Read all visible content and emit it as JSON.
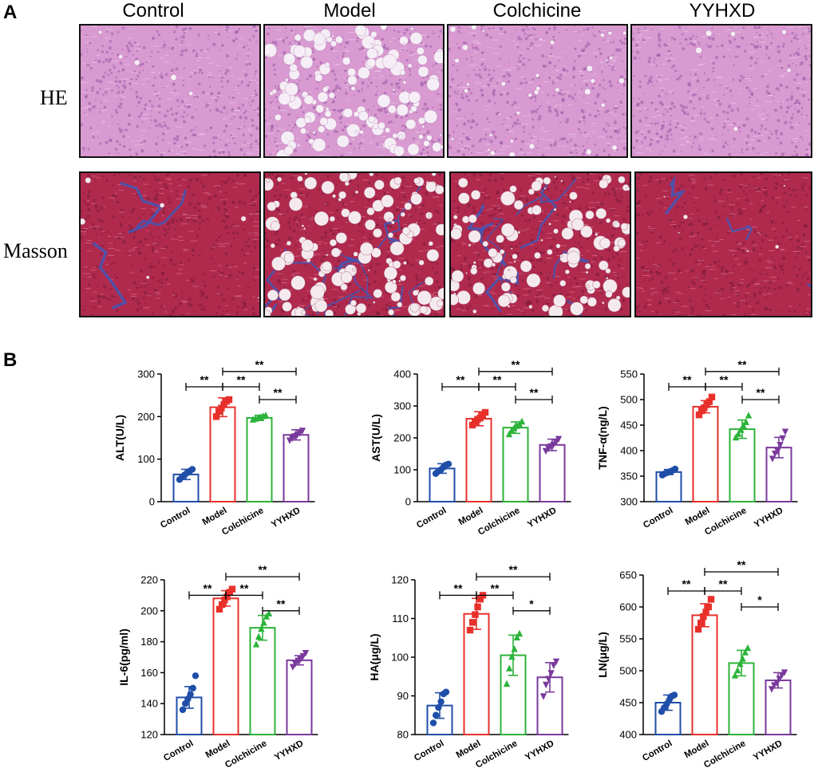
{
  "panel_a": {
    "letter": "A",
    "columns": [
      "Control",
      "Model",
      "Colchicine",
      "YYHXD"
    ],
    "rows": [
      "HE",
      "Masson"
    ]
  },
  "panel_b": {
    "letter": "B"
  },
  "colors": {
    "Control": "#1f4ea8",
    "Model": "#e8302b",
    "Colchicine": "#2cb33a",
    "YYHXD": "#7a3a9c",
    "he_bg": "#d89ad0",
    "he_vacuole": "#f6eef6",
    "masson_bg": "#b02a4e",
    "masson_vacuole": "#f4eaee",
    "collagen": "#3f58b8"
  },
  "chart_data": [
    {
      "type": "bar",
      "ylabel": "ALT(U/L)",
      "categories": [
        "Control",
        "Model",
        "Colchicine",
        "YYHXD"
      ],
      "ylim": [
        0,
        300
      ],
      "yticks": [
        0,
        100,
        200,
        300
      ],
      "means": [
        64,
        222,
        197,
        157
      ],
      "sd": [
        12,
        22,
        6,
        12
      ],
      "points": [
        [
          52,
          58,
          63,
          68,
          72,
          76
        ],
        [
          200,
          212,
          220,
          228,
          236,
          240
        ],
        [
          192,
          194,
          196,
          198,
          200,
          202
        ],
        [
          145,
          150,
          155,
          158,
          163,
          168
        ]
      ],
      "markers": [
        "circle",
        "square",
        "triangle",
        "triangle-down"
      ],
      "significance": [
        {
          "from": "Control",
          "to": "Model",
          "label": "**"
        },
        {
          "from": "Model",
          "to": "Colchicine",
          "label": "**"
        },
        {
          "from": "Model",
          "to": "YYHXD",
          "label": "**"
        },
        {
          "from": "Colchicine",
          "to": "YYHXD",
          "label": "**"
        }
      ]
    },
    {
      "type": "bar",
      "ylabel": "AST(U/L)",
      "categories": [
        "Control",
        "Model",
        "Colchicine",
        "YYHXD"
      ],
      "ylim": [
        0,
        400
      ],
      "yticks": [
        0,
        100,
        200,
        300,
        400
      ],
      "means": [
        104,
        260,
        232,
        178
      ],
      "sd": [
        15,
        22,
        18,
        18
      ],
      "points": [
        [
          88,
          95,
          100,
          108,
          115,
          118
        ],
        [
          240,
          250,
          258,
          262,
          272,
          280
        ],
        [
          210,
          222,
          230,
          236,
          242,
          250
        ],
        [
          160,
          168,
          175,
          180,
          188,
          198
        ]
      ],
      "markers": [
        "circle",
        "square",
        "triangle",
        "triangle-down"
      ],
      "significance": [
        {
          "from": "Control",
          "to": "Model",
          "label": "**"
        },
        {
          "from": "Model",
          "to": "Colchicine",
          "label": "**"
        },
        {
          "from": "Model",
          "to": "YYHXD",
          "label": "**"
        },
        {
          "from": "Colchicine",
          "to": "YYHXD",
          "label": "**"
        }
      ]
    },
    {
      "type": "bar",
      "ylabel": "TNF-α(ng/L)",
      "categories": [
        "Control",
        "Model",
        "Colchicine",
        "YYHXD"
      ],
      "ylim": [
        300,
        550
      ],
      "yticks": [
        300,
        350,
        400,
        450,
        500,
        550
      ],
      "means": [
        358,
        486,
        442,
        406
      ],
      "sd": [
        5,
        12,
        18,
        20
      ],
      "points": [
        [
          352,
          355,
          357,
          359,
          361,
          364
        ],
        [
          470,
          478,
          484,
          490,
          496,
          505
        ],
        [
          425,
          432,
          440,
          448,
          455,
          468
        ],
        [
          385,
          395,
          400,
          412,
          425,
          438
        ]
      ],
      "markers": [
        "circle",
        "square",
        "triangle",
        "triangle-down"
      ],
      "significance": [
        {
          "from": "Control",
          "to": "Model",
          "label": "**"
        },
        {
          "from": "Model",
          "to": "Colchicine",
          "label": "**"
        },
        {
          "from": "Model",
          "to": "YYHXD",
          "label": "**"
        },
        {
          "from": "Colchicine",
          "to": "YYHXD",
          "label": "**"
        }
      ]
    },
    {
      "type": "bar",
      "ylabel": "IL-6(pg/ml)",
      "categories": [
        "Control",
        "Model",
        "Colchicine",
        "YYHXD"
      ],
      "ylim": [
        120,
        220
      ],
      "yticks": [
        120,
        140,
        160,
        180,
        200,
        220
      ],
      "means": [
        144,
        208,
        189,
        168
      ],
      "sd": [
        7,
        5,
        8,
        3
      ],
      "points": [
        [
          136,
          140,
          143,
          146,
          150,
          158
        ],
        [
          201,
          204,
          207,
          209,
          212,
          214
        ],
        [
          178,
          183,
          188,
          192,
          196,
          198
        ],
        [
          164,
          166,
          168,
          169,
          171,
          173
        ]
      ],
      "markers": [
        "circle",
        "square",
        "triangle",
        "triangle-down"
      ],
      "significance": [
        {
          "from": "Control",
          "to": "Model",
          "label": "**"
        },
        {
          "from": "Model",
          "to": "Colchicine",
          "label": "**"
        },
        {
          "from": "Model",
          "to": "YYHXD",
          "label": "**"
        },
        {
          "from": "Colchicine",
          "to": "YYHXD",
          "label": "**"
        }
      ]
    },
    {
      "type": "bar",
      "ylabel": "HA(μg/L)",
      "categories": [
        "Control",
        "Model",
        "Colchicine",
        "YYHXD"
      ],
      "ylim": [
        80,
        120
      ],
      "yticks": [
        80,
        90,
        100,
        110,
        120
      ],
      "means": [
        87.5,
        111.2,
        100.5,
        94.8
      ],
      "sd": [
        3.3,
        4,
        5.2,
        3.8
      ],
      "points": [
        [
          83,
          85,
          87,
          88.5,
          90.5,
          91
        ],
        [
          107,
          109,
          111,
          113,
          115,
          116
        ],
        [
          93,
          97,
          100,
          102,
          105,
          106
        ],
        [
          90,
          93,
          94.5,
          96,
          98,
          99
        ]
      ],
      "markers": [
        "circle",
        "square",
        "triangle",
        "triangle-down"
      ],
      "significance": [
        {
          "from": "Control",
          "to": "Model",
          "label": "**"
        },
        {
          "from": "Model",
          "to": "Colchicine",
          "label": "**"
        },
        {
          "from": "Model",
          "to": "YYHXD",
          "label": "**"
        },
        {
          "from": "Colchicine",
          "to": "YYHXD",
          "label": "*"
        }
      ]
    },
    {
      "type": "bar",
      "ylabel": "LN(μg/L)",
      "categories": [
        "Control",
        "Model",
        "Colchicine",
        "YYHXD"
      ],
      "ylim": [
        400,
        650
      ],
      "yticks": [
        400,
        450,
        500,
        550,
        600,
        650
      ],
      "means": [
        450,
        587,
        512,
        485
      ],
      "sd": [
        12,
        18,
        20,
        12
      ],
      "points": [
        [
          436,
          442,
          448,
          454,
          460,
          462
        ],
        [
          565,
          575,
          585,
          592,
          600,
          612
        ],
        [
          492,
          500,
          510,
          518,
          528,
          535
        ],
        [
          472,
          478,
          482,
          488,
          494,
          498
        ]
      ],
      "markers": [
        "circle",
        "square",
        "triangle",
        "triangle-down"
      ],
      "significance": [
        {
          "from": "Control",
          "to": "Model",
          "label": "**"
        },
        {
          "from": "Model",
          "to": "Colchicine",
          "label": "**"
        },
        {
          "from": "Model",
          "to": "YYHXD",
          "label": "**"
        },
        {
          "from": "Colchicine",
          "to": "YYHXD",
          "label": "*"
        }
      ]
    }
  ]
}
